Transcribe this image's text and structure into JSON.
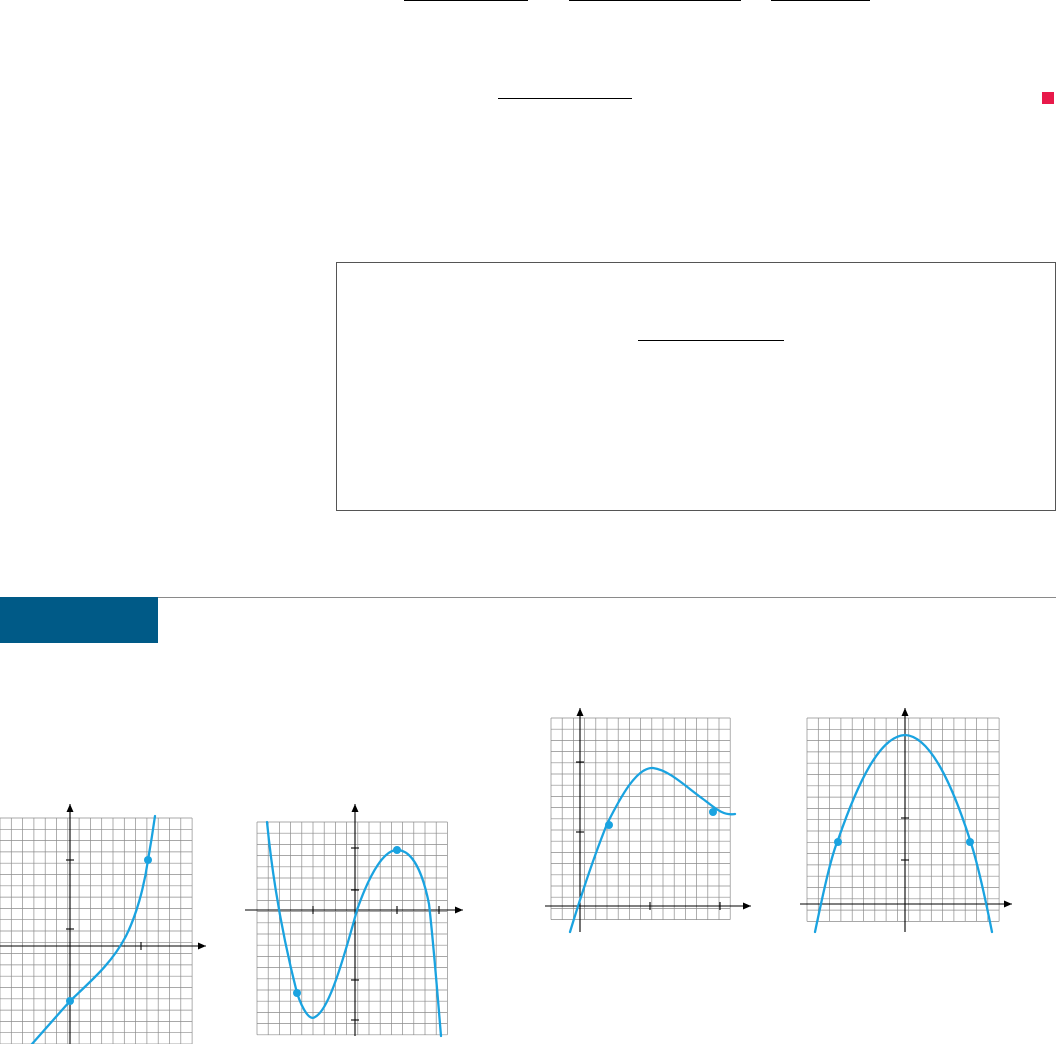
{
  "colors": {
    "curve": "#1aa3e0",
    "grid": "#8c8c8c",
    "axis": "#000000",
    "end_marker": "#e8194a",
    "section_bar": "#005a87"
  },
  "graphs": [
    {
      "id": "graph-1",
      "kind": "increasing curve with two marked points"
    },
    {
      "id": "graph-2",
      "kind": "cubic curve with two marked points"
    },
    {
      "id": "graph-3",
      "kind": "curve with local maximum and two marked points"
    },
    {
      "id": "graph-4",
      "kind": "parabola with two marked points"
    }
  ]
}
